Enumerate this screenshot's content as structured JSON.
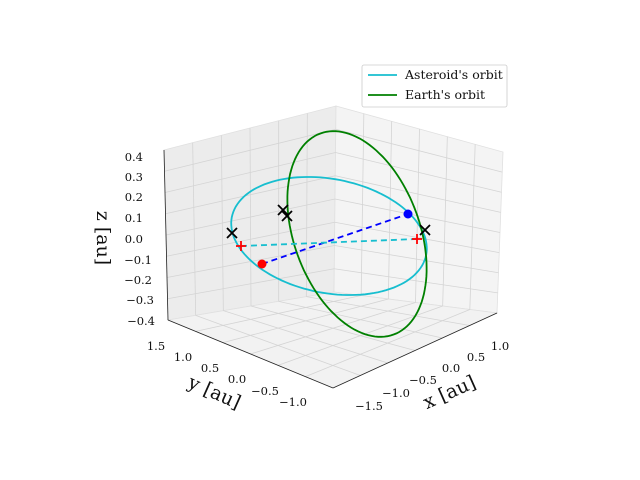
{
  "chart_data": {
    "type": "line3d",
    "axes": {
      "x": {
        "label": "x [au]",
        "ticks": [
          "−1.5",
          "−1.0",
          "−0.5",
          "0.0",
          "0.5",
          "1.0"
        ],
        "range": [
          -1.8,
          1.3
        ]
      },
      "y": {
        "label": "y [au]",
        "ticks": [
          "1.5",
          "1.0",
          "0.5",
          "0.0",
          "−0.5",
          "−1.0"
        ],
        "range": [
          -1.3,
          1.8
        ]
      },
      "z": {
        "label": "z [au]",
        "ticks": [
          "0.4",
          "0.3",
          "0.2",
          "0.1",
          "0.0",
          "−0.1",
          "−0.2",
          "−0.3",
          "−0.4"
        ],
        "range": [
          -0.45,
          0.45
        ]
      }
    },
    "legend": {
      "placement": "upper right",
      "entries": [
        {
          "label": "Asteroid's orbit",
          "color": "#17becf"
        },
        {
          "label": "Earth's orbit",
          "color": "#008000"
        }
      ]
    },
    "orbits": {
      "asteroid": {
        "color": "#17becf",
        "note": "elliptical orbit, moderately inclined"
      },
      "earth": {
        "color": "#008000",
        "note": "near-circular orbit, strongly inclined in view"
      }
    },
    "markers": {
      "red_dot": {
        "color": "#ff0000",
        "x": 0.55,
        "y": 1.1,
        "z": -0.05
      },
      "blue_dot": {
        "color": "#0000ff",
        "x": -0.3,
        "y": -1.0,
        "z": 0.25
      },
      "red_plus": [
        {
          "color": "#ff0000",
          "x": 0.35,
          "y": 1.15,
          "z": 0.02
        },
        {
          "color": "#ff0000",
          "x": -0.05,
          "y": -1.2,
          "z": 0.0
        }
      ],
      "black_x": [
        {
          "color": "#000000",
          "x": 0.8,
          "y": 1.3,
          "z": 0.02
        },
        {
          "color": "#000000",
          "x": 0.0,
          "y": 0.65,
          "z": 0.12
        },
        {
          "color": "#000000",
          "x": 0.0,
          "y": 0.62,
          "z": 0.1
        },
        {
          "color": "#000000",
          "x": -0.55,
          "y": -1.05,
          "z": 0.1
        }
      ]
    },
    "connectors": [
      {
        "style": "dashed",
        "color": "#0000ff",
        "from": "red_dot",
        "to": "blue_dot"
      },
      {
        "style": "dashed",
        "color": "#17becf",
        "from": "red_plus_0",
        "to": "red_plus_1"
      }
    ],
    "grid": true
  }
}
